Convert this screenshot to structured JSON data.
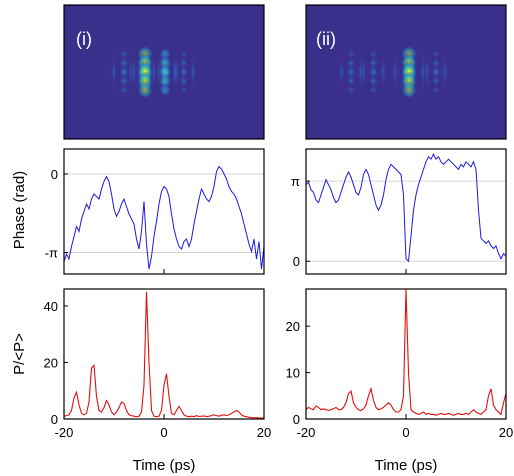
{
  "figure": {
    "panel_labels": [
      "(i)",
      "(ii)"
    ],
    "colors": {
      "phase_line": "#1a1ae6",
      "power_line": "#e01010",
      "heatmap_bg": "#3b2f8c",
      "grid": "#c8c8c8"
    }
  },
  "chart_data": [
    {
      "type": "heatmap",
      "panel": "(i)",
      "colormap": "parula",
      "hotspots": [
        {
          "t": -3.8,
          "value": 1.0
        },
        {
          "t": 0.2,
          "value": 0.55
        },
        {
          "t": -8.0,
          "value": 0.35
        },
        {
          "t": 4.0,
          "value": 0.2
        }
      ]
    },
    {
      "type": "heatmap",
      "panel": "(ii)",
      "colormap": "parula",
      "hotspots": [
        {
          "t": 0.6,
          "value": 1.0
        },
        {
          "t": -6.5,
          "value": 0.3
        },
        {
          "t": -11.0,
          "value": 0.25
        },
        {
          "t": 6.0,
          "value": 0.15
        }
      ]
    },
    {
      "type": "line",
      "panel": "(i)",
      "ylabel": "Phase (rad)",
      "xlim": [
        -20,
        20
      ],
      "ylim": [
        -4.0,
        1.0
      ],
      "yticks": [
        {
          "value": 0,
          "label": "0"
        },
        {
          "value": -3.14159,
          "label": "-π"
        }
      ],
      "grid": true,
      "x": [
        -20,
        -19.5,
        -19,
        -18.5,
        -18,
        -17.5,
        -17,
        -16.5,
        -16,
        -15.5,
        -15,
        -14.5,
        -14,
        -13.5,
        -13,
        -12.5,
        -12,
        -11.5,
        -11,
        -10.5,
        -10,
        -9.5,
        -9,
        -8.5,
        -8,
        -7.5,
        -7,
        -6.5,
        -6,
        -5.5,
        -5,
        -4.5,
        -4,
        -3.5,
        -3,
        -2.5,
        -2,
        -1.5,
        -1,
        -0.5,
        0,
        0.5,
        1,
        1.5,
        2,
        2.5,
        3,
        3.5,
        4,
        4.5,
        5,
        5.5,
        6,
        6.5,
        7,
        7.5,
        8,
        8.5,
        9,
        9.5,
        10,
        10.5,
        11,
        11.5,
        12,
        12.5,
        13,
        13.5,
        14,
        14.5,
        15,
        15.5,
        16,
        16.5,
        17,
        17.5,
        18,
        18.5,
        19,
        19.5,
        20
      ],
      "y": [
        -3.5,
        -3.2,
        -3.4,
        -2.9,
        -2.5,
        -2.1,
        -2.3,
        -1.8,
        -1.5,
        -1.2,
        -1.4,
        -1.0,
        -0.8,
        -0.9,
        -1.0,
        -0.6,
        -0.3,
        -0.1,
        -0.3,
        -0.8,
        -1.4,
        -1.7,
        -1.5,
        -1.2,
        -1.0,
        -1.3,
        -1.6,
        -1.8,
        -2.0,
        -2.6,
        -3.0,
        -2.3,
        -1.1,
        -2.8,
        -3.8,
        -3.3,
        -2.5,
        -1.9,
        -1.2,
        -0.7,
        -0.5,
        -0.6,
        -0.9,
        -1.6,
        -2.2,
        -2.6,
        -2.9,
        -3.0,
        -2.7,
        -2.6,
        -2.9,
        -2.6,
        -2.0,
        -1.5,
        -1.0,
        -0.6,
        -0.8,
        -1.0,
        -1.1,
        -0.9,
        -0.5,
        0.1,
        0.3,
        0.2,
        0.0,
        -0.2,
        -0.5,
        -0.7,
        -0.8,
        -1.0,
        -1.3,
        -1.6,
        -2.0,
        -2.4,
        -2.8,
        -3.1,
        -2.6,
        -3.4,
        -2.7,
        -3.8,
        -2.9
      ]
    },
    {
      "type": "line",
      "panel": "(ii)",
      "ylabel": "",
      "xlim": [
        -20,
        20
      ],
      "ylim": [
        -0.5,
        4.4
      ],
      "yticks": [
        {
          "value": 3.14159,
          "label": "π"
        },
        {
          "value": 0,
          "label": "0"
        }
      ],
      "grid": true,
      "x": [
        -20,
        -19.5,
        -19,
        -18.5,
        -18,
        -17.5,
        -17,
        -16.5,
        -16,
        -15.5,
        -15,
        -14.5,
        -14,
        -13.5,
        -13,
        -12.5,
        -12,
        -11.5,
        -11,
        -10.5,
        -10,
        -9.5,
        -9,
        -8.5,
        -8,
        -7.5,
        -7,
        -6.5,
        -6,
        -5.5,
        -5,
        -4.5,
        -4,
        -3.5,
        -3,
        -2.5,
        -2,
        -1.5,
        -1,
        -0.5,
        0,
        0.5,
        1,
        1.5,
        2,
        2.5,
        3,
        3.5,
        4,
        4.5,
        5,
        5.5,
        6,
        6.5,
        7,
        7.5,
        8,
        8.5,
        9,
        9.5,
        10,
        10.5,
        11,
        11.5,
        12,
        12.5,
        13,
        13.5,
        14,
        14.5,
        15,
        15.5,
        16,
        16.5,
        17,
        17.5,
        18,
        18.5,
        19,
        19.5,
        20
      ],
      "y": [
        3.0,
        3.1,
        2.8,
        2.7,
        2.4,
        2.3,
        2.6,
        2.9,
        3.2,
        3.0,
        2.8,
        2.5,
        2.3,
        2.4,
        2.7,
        3.0,
        3.3,
        3.5,
        3.3,
        3.0,
        2.7,
        2.6,
        2.9,
        3.4,
        3.6,
        3.4,
        3.0,
        2.6,
        2.2,
        2.0,
        2.2,
        2.6,
        3.2,
        3.6,
        3.8,
        3.7,
        3.6,
        3.5,
        3.4,
        2.6,
        0.1,
        0.0,
        1.0,
        2.0,
        2.6,
        3.0,
        3.3,
        3.6,
        3.9,
        4.1,
        4.0,
        4.2,
        4.0,
        4.1,
        3.9,
        3.8,
        3.9,
        4.0,
        3.9,
        3.8,
        3.7,
        3.6,
        3.8,
        3.7,
        3.9,
        3.8,
        3.7,
        3.9,
        3.6,
        2.0,
        0.9,
        0.8,
        0.7,
        0.8,
        0.6,
        0.5,
        0.6,
        0.3,
        0.1,
        0.3,
        0.2
      ]
    },
    {
      "type": "line",
      "panel": "(i)",
      "xlabel": "Time (ps)",
      "ylabel": "P/<P>",
      "xlim": [
        -20,
        20
      ],
      "ylim": [
        0,
        46
      ],
      "xticks": [
        -20,
        0,
        20
      ],
      "yticks": [
        0,
        20,
        40
      ],
      "x": [
        -20,
        -19.5,
        -19,
        -18.5,
        -18,
        -17.5,
        -17,
        -16.5,
        -16,
        -15.5,
        -15,
        -14.5,
        -14,
        -13.5,
        -13,
        -12.5,
        -12,
        -11.5,
        -11,
        -10.5,
        -10,
        -9.5,
        -9,
        -8.5,
        -8,
        -7.5,
        -7,
        -6.5,
        -6,
        -5.5,
        -5,
        -4.5,
        -4,
        -3.5,
        -3,
        -2.5,
        -2,
        -1.5,
        -1,
        -0.5,
        0,
        0.5,
        1,
        1.5,
        2,
        2.5,
        3,
        3.5,
        4,
        4.5,
        5,
        5.5,
        6,
        6.5,
        7,
        7.5,
        8,
        8.5,
        9,
        9.5,
        10,
        10.5,
        11,
        11.5,
        12,
        12.5,
        13,
        13.5,
        14,
        14.5,
        15,
        15.5,
        16,
        16.5,
        17,
        17.5,
        18,
        18.5,
        19,
        19.5,
        20
      ],
      "y": [
        1.0,
        1.2,
        1.5,
        3.0,
        7.5,
        9.5,
        5.0,
        2.0,
        1.5,
        2.0,
        6.0,
        18.0,
        19.0,
        8.0,
        3.0,
        2.5,
        4.0,
        6.5,
        5.0,
        2.5,
        1.5,
        2.5,
        4.0,
        6.0,
        5.5,
        3.0,
        1.5,
        1.2,
        1.0,
        0.8,
        1.0,
        2.5,
        12.0,
        45.0,
        20.0,
        3.0,
        1.0,
        0.8,
        1.0,
        3.0,
        12.0,
        16.0,
        8.0,
        2.0,
        1.5,
        3.0,
        4.5,
        3.0,
        1.5,
        1.0,
        0.8,
        1.0,
        0.8,
        1.2,
        0.9,
        1.0,
        1.1,
        0.8,
        1.0,
        1.2,
        1.5,
        1.2,
        1.0,
        1.3,
        1.5,
        1.2,
        1.5,
        2.0,
        2.5,
        3.0,
        2.5,
        1.5,
        1.0,
        0.8,
        0.6,
        0.5,
        0.4,
        0.5,
        0.3,
        0.4,
        0.3
      ]
    },
    {
      "type": "line",
      "panel": "(ii)",
      "xlabel": "Time (ps)",
      "ylabel": "",
      "xlim": [
        -20,
        20
      ],
      "ylim": [
        0,
        28
      ],
      "xticks": [
        -20,
        0,
        20
      ],
      "yticks": [
        0,
        10,
        20
      ],
      "x": [
        -20,
        -19.5,
        -19,
        -18.5,
        -18,
        -17.5,
        -17,
        -16.5,
        -16,
        -15.5,
        -15,
        -14.5,
        -14,
        -13.5,
        -13,
        -12.5,
        -12,
        -11.5,
        -11,
        -10.5,
        -10,
        -9.5,
        -9,
        -8.5,
        -8,
        -7.5,
        -7,
        -6.5,
        -6,
        -5.5,
        -5,
        -4.5,
        -4,
        -3.5,
        -3,
        -2.5,
        -2,
        -1.5,
        -1,
        -0.5,
        0,
        0.5,
        1,
        1.5,
        2,
        2.5,
        3,
        3.5,
        4,
        4.5,
        5,
        5.5,
        6,
        6.5,
        7,
        7.5,
        8,
        8.5,
        9,
        9.5,
        10,
        10.5,
        11,
        11.5,
        12,
        12.5,
        13,
        13.5,
        14,
        14.5,
        15,
        15.5,
        16,
        16.5,
        17,
        17.5,
        18,
        18.5,
        19,
        19.5,
        20
      ],
      "y": [
        2.0,
        2.5,
        2.2,
        2.0,
        2.8,
        2.5,
        2.0,
        2.2,
        2.0,
        1.8,
        2.0,
        2.2,
        2.5,
        2.0,
        2.0,
        2.5,
        3.5,
        5.5,
        6.0,
        3.5,
        2.5,
        2.0,
        1.8,
        2.2,
        3.0,
        5.0,
        6.5,
        4.0,
        2.5,
        2.0,
        2.2,
        2.5,
        3.0,
        3.5,
        3.0,
        2.0,
        1.5,
        1.5,
        2.0,
        5.0,
        28.0,
        10.0,
        2.0,
        1.5,
        1.2,
        1.0,
        1.2,
        1.5,
        1.0,
        1.2,
        1.0,
        1.0,
        0.8,
        1.0,
        1.2,
        1.0,
        1.0,
        1.2,
        1.0,
        0.8,
        1.0,
        1.2,
        1.0,
        1.0,
        1.2,
        1.0,
        1.5,
        2.0,
        1.5,
        1.2,
        1.0,
        1.5,
        2.0,
        5.0,
        6.5,
        3.0,
        2.0,
        1.5,
        1.0,
        3.5,
        5.5
      ]
    }
  ]
}
